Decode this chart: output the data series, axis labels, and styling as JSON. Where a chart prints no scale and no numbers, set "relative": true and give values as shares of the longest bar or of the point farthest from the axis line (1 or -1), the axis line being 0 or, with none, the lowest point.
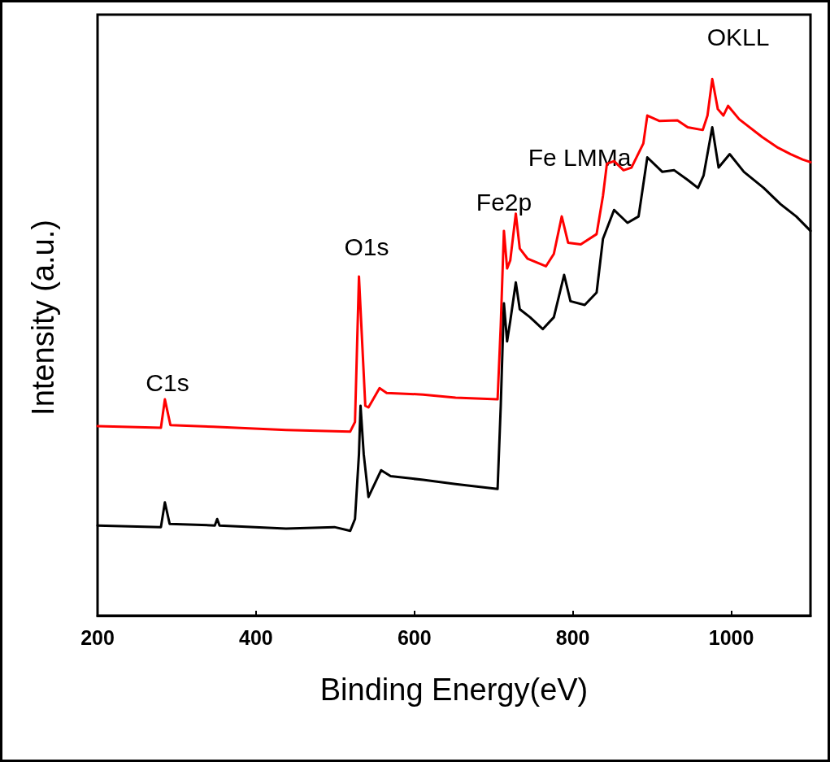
{
  "chart_data": {
    "type": "line",
    "xlabel": "Binding Energy(eV)",
    "ylabel": "Intensity (a.u.)",
    "relative": true,
    "xlim": [
      200,
      1100
    ],
    "xticks": [
      200,
      400,
      600,
      800,
      1000
    ],
    "grid": false,
    "marker": "none",
    "line_style": "solid",
    "annotations": [
      "C1s",
      "O1s",
      "Fe2p",
      "Fe LMMa",
      "OKLL"
    ],
    "series": [
      {
        "color": "#ff0000",
        "x": [
          200,
          280,
          285,
          292,
          346,
          438,
          519,
          525,
          530,
          534,
          538,
          542,
          556,
          565,
          611,
          652,
          705,
          709,
          713,
          717,
          721,
          728,
          733,
          743,
          766,
          776,
          786,
          794,
          810,
          830,
          838,
          843,
          852,
          864,
          874,
          889,
          894,
          909,
          932,
          945,
          964,
          970,
          976,
          983,
          990,
          996,
          1010,
          1039,
          1059,
          1075,
          1090,
          1100
        ],
        "values": [
          0.353,
          0.35,
          0.403,
          0.355,
          0.352,
          0.346,
          0.343,
          0.361,
          0.632,
          0.511,
          0.391,
          0.388,
          0.424,
          0.415,
          0.412,
          0.406,
          0.403,
          0.541,
          0.717,
          0.647,
          0.662,
          0.749,
          0.684,
          0.665,
          0.651,
          0.674,
          0.744,
          0.695,
          0.692,
          0.711,
          0.782,
          0.842,
          0.847,
          0.83,
          0.835,
          0.88,
          0.932,
          0.922,
          0.923,
          0.91,
          0.905,
          0.932,
          1.0,
          0.944,
          0.932,
          0.95,
          0.925,
          0.892,
          0.872,
          0.86,
          0.85,
          0.845
        ]
      },
      {
        "color": "#000000",
        "x": [
          200,
          280,
          285,
          291,
          348,
          351,
          354,
          438,
          499,
          519,
          525,
          530,
          532,
          536,
          542,
          558,
          570,
          611,
          652,
          705,
          709,
          713,
          717,
          721,
          728,
          733,
          746,
          762,
          776,
          789,
          797,
          815,
          830,
          838,
          852,
          869,
          883,
          894,
          913,
          928,
          945,
          958,
          965,
          976,
          984,
          998,
          1016,
          1041,
          1062,
          1082,
          1100
        ],
        "values": [
          0.168,
          0.165,
          0.211,
          0.171,
          0.168,
          0.18,
          0.168,
          0.162,
          0.165,
          0.158,
          0.18,
          0.301,
          0.391,
          0.301,
          0.221,
          0.271,
          0.26,
          0.253,
          0.245,
          0.236,
          0.391,
          0.582,
          0.511,
          0.549,
          0.621,
          0.571,
          0.556,
          0.534,
          0.556,
          0.635,
          0.586,
          0.579,
          0.602,
          0.702,
          0.756,
          0.732,
          0.744,
          0.854,
          0.827,
          0.83,
          0.812,
          0.797,
          0.82,
          0.91,
          0.835,
          0.86,
          0.827,
          0.797,
          0.767,
          0.744,
          0.717
        ]
      }
    ]
  }
}
